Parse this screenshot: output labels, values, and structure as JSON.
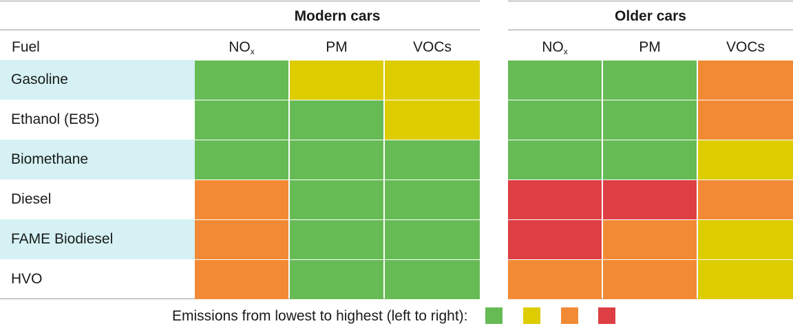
{
  "header": {
    "fuel_label": "Fuel",
    "groups": [
      {
        "title": "Modern cars",
        "columns": [
          {
            "main": "NO",
            "sub": "x"
          },
          {
            "main": "PM",
            "sub": ""
          },
          {
            "main": "VOCs",
            "sub": ""
          }
        ]
      },
      {
        "title": "Older cars",
        "columns": [
          {
            "main": "NO",
            "sub": "x"
          },
          {
            "main": "PM",
            "sub": ""
          },
          {
            "main": "VOCs",
            "sub": ""
          }
        ]
      }
    ]
  },
  "chart_data": {
    "type": "table",
    "rows": [
      "Gasoline",
      "Ethanol (E85)",
      "Biomethane",
      "Diesel",
      "FAME Biodiesel",
      "HVO"
    ],
    "columns": [
      "Modern cars NOx",
      "Modern cars PM",
      "Modern cars VOCs",
      "Older cars NOx",
      "Older cars PM",
      "Older cars VOCs"
    ],
    "levels": [
      [
        1,
        2,
        2,
        1,
        1,
        3
      ],
      [
        1,
        1,
        2,
        1,
        1,
        3
      ],
      [
        1,
        1,
        1,
        1,
        1,
        2
      ],
      [
        3,
        1,
        1,
        4,
        4,
        3
      ],
      [
        3,
        1,
        1,
        4,
        3,
        2
      ],
      [
        3,
        1,
        1,
        3,
        3,
        2
      ]
    ],
    "level_colors": [
      "#66bb55",
      "#dccc00",
      "#f28a35",
      "#dd3f44"
    ]
  },
  "legend": {
    "text": "Emissions from lowest to highest (left to right):"
  }
}
